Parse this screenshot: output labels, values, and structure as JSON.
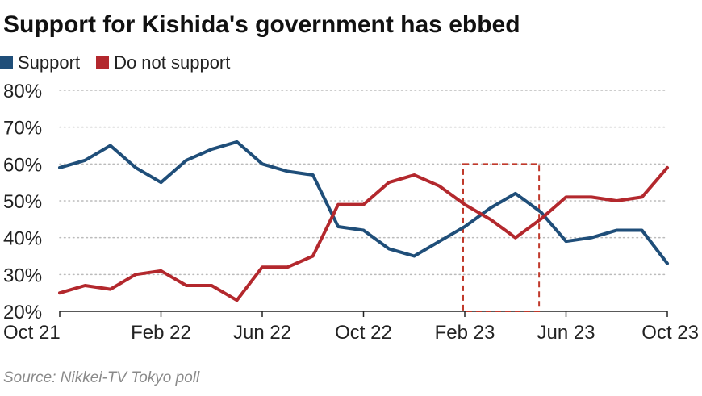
{
  "title": "Support for Kishida's government has ebbed",
  "source": "Source: Nikkei-TV Tokyo poll",
  "colors": {
    "support": "#1f4e79",
    "not_support": "#b3282d",
    "grid": "#bbbbbb",
    "highlight": "#c0392b"
  },
  "chart_data": {
    "type": "line",
    "title": "Support for Kishida's government has ebbed",
    "xlabel": "",
    "ylabel": "",
    "ylim": [
      20,
      80
    ],
    "yticks": [
      20,
      30,
      40,
      50,
      60,
      70,
      80
    ],
    "ytick_labels": [
      "20%",
      "30%",
      "40%",
      "50%",
      "60%",
      "70%",
      "80%"
    ],
    "grid": true,
    "legend": "top-left",
    "x": [
      "2021-10",
      "2021-11",
      "2021-12",
      "2022-01",
      "2022-02",
      "2022-03",
      "2022-04",
      "2022-05",
      "2022-06",
      "2022-07",
      "2022-08",
      "2022-09",
      "2022-10",
      "2022-11",
      "2022-12",
      "2023-01",
      "2023-02",
      "2023-03",
      "2023-04",
      "2023-05",
      "2023-06",
      "2023-07",
      "2023-08",
      "2023-09",
      "2023-10"
    ],
    "xticks": [
      "2021-10",
      "2022-02",
      "2022-06",
      "2022-10",
      "2023-02",
      "2023-06",
      "2023-10"
    ],
    "xtick_labels": [
      "Oct 21",
      "Feb 22",
      "Jun 22",
      "Oct 22",
      "Feb 23",
      "Jun 23",
      "Oct 23"
    ],
    "series": [
      {
        "name": "Support",
        "values": [
          59,
          61,
          65,
          59,
          55,
          61,
          64,
          66,
          60,
          58,
          57,
          43,
          42,
          37,
          35,
          39,
          43,
          48,
          52,
          47,
          39,
          40,
          42,
          42,
          33
        ]
      },
      {
        "name": "Do not support",
        "values": [
          25,
          27,
          26,
          30,
          31,
          27,
          27,
          23,
          32,
          32,
          35,
          49,
          49,
          55,
          57,
          54,
          49,
          45,
          40,
          45,
          51,
          51,
          50,
          51,
          59
        ]
      }
    ],
    "highlight": {
      "x_start": "2023-02",
      "x_end": "2023-05"
    }
  }
}
